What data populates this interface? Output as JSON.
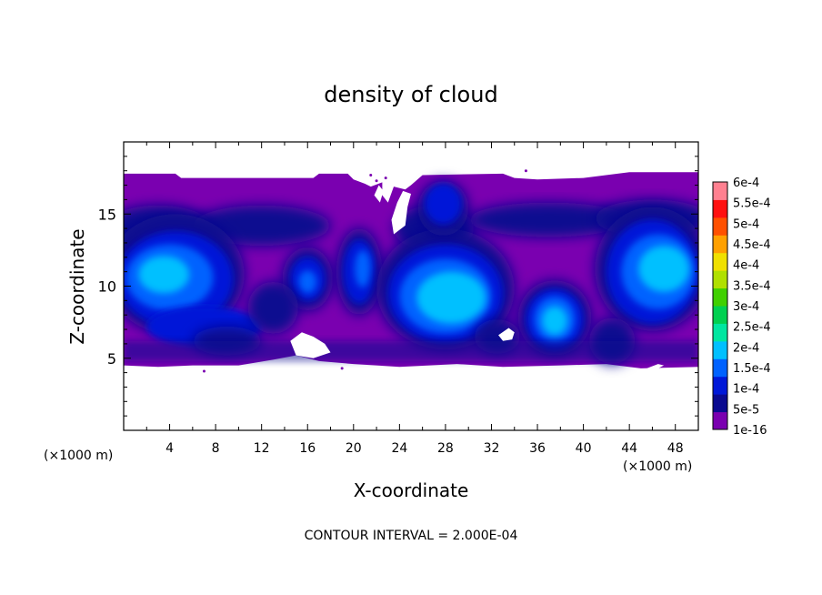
{
  "chart_data": {
    "type": "heatmap",
    "title": "density of cloud",
    "xlabel": "X-coordinate",
    "ylabel": "Z-coordinate",
    "x_unit_label": "(×1000 m)",
    "x_unit_label_right": "(×1000 m)",
    "xlim": [
      0,
      50
    ],
    "ylim": [
      0,
      20
    ],
    "x_ticks": [
      4,
      8,
      12,
      16,
      20,
      24,
      28,
      32,
      36,
      40,
      44,
      48
    ],
    "x_tick_labels": [
      "4",
      "8",
      "12",
      "16",
      "20",
      "24",
      "28",
      "32",
      "36",
      "40",
      "44",
      "48"
    ],
    "y_ticks": [
      5,
      10,
      15
    ],
    "y_tick_labels": [
      "5",
      "10",
      "15"
    ],
    "contour_interval_text": "CONTOUR INTERVAL = 2.000E-04",
    "colorbar": {
      "levels": [
        "1e-16",
        "5e-5",
        "1e-4",
        "1.5e-4",
        "2e-4",
        "2.5e-4",
        "3e-4",
        "3.5e-4",
        "4e-4",
        "4.5e-4",
        "5e-4",
        "5.5e-4",
        "6e-4"
      ],
      "colors": [
        "#7a00b0",
        "#0a0a90",
        "#0018d8",
        "#0062ff",
        "#00c0ff",
        "#00e6a0",
        "#00d050",
        "#40d000",
        "#b0e000",
        "#f0e000",
        "#ffa000",
        "#ff5000",
        "#ff1010",
        "#ff8090"
      ]
    },
    "field": {
      "cloud_layer_z_range": [
        4.5,
        17.8
      ],
      "features": [
        {
          "name": "left-core",
          "x": 4,
          "z": 10.5,
          "level": 4
        },
        {
          "name": "center-plume",
          "x": 28,
          "z": 9.5,
          "level": 4
        },
        {
          "name": "right-core",
          "x": 46,
          "z": 11,
          "level": 4
        },
        {
          "name": "top-bubble",
          "x": 28,
          "z": 15.5,
          "level": 2
        },
        {
          "name": "eddy-16",
          "x": 16,
          "z": 10.5,
          "level": 3
        },
        {
          "name": "eddy-20",
          "x": 20.5,
          "z": 11,
          "level": 3
        },
        {
          "name": "dome-37",
          "x": 37,
          "z": 8,
          "level": 4
        }
      ]
    }
  }
}
